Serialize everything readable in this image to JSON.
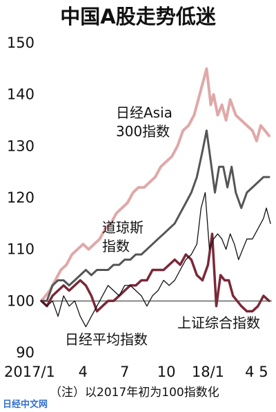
{
  "chart_data": {
    "type": "line",
    "title": "中国A股走势低迷",
    "note": "（注）以2017年初为100指数化",
    "ylim": [
      90,
      150
    ],
    "yticks": [
      90,
      100,
      110,
      120,
      130,
      140,
      150
    ],
    "xlim": [
      0,
      16.6
    ],
    "xticks": [
      {
        "x": 0,
        "label": "2017/1"
      },
      {
        "x": 3,
        "label": "4"
      },
      {
        "x": 6,
        "label": "7"
      },
      {
        "x": 9,
        "label": "10"
      },
      {
        "x": 12,
        "label": "18/1"
      },
      {
        "x": 15,
        "label": "4"
      },
      {
        "x": 16,
        "label": "5"
      }
    ],
    "baseline": 100,
    "series": [
      {
        "name": "日经Asia 300指数",
        "color": "#e0a8a8",
        "width": 4,
        "x": [
          0,
          0.3,
          0.6,
          1.0,
          1.4,
          1.8,
          2.2,
          2.6,
          3.0,
          3.4,
          3.8,
          4.2,
          4.6,
          5.0,
          5.4,
          5.8,
          6.2,
          6.6,
          7.0,
          7.4,
          7.8,
          8.2,
          8.6,
          9.0,
          9.4,
          9.8,
          10.2,
          10.6,
          11.0,
          11.3,
          11.6,
          11.9,
          12.2,
          12.4,
          12.7,
          13.0,
          13.3,
          13.6,
          14.0,
          14.4,
          14.8,
          15.2,
          15.5,
          15.8,
          16.1,
          16.4
        ],
        "values": [
          100,
          101,
          102,
          104,
          106,
          107,
          109,
          110,
          111,
          110,
          111,
          112,
          114,
          115,
          117,
          118,
          119,
          121,
          122,
          122,
          123,
          124,
          126,
          127,
          128,
          130,
          133,
          134,
          136,
          139,
          142,
          145,
          138,
          140,
          136,
          138,
          135,
          139,
          136,
          135,
          134,
          133,
          131,
          134,
          133,
          132
        ]
      },
      {
        "name": "道琼斯指数",
        "color": "#555555",
        "width": 3,
        "x": [
          0,
          0.4,
          0.8,
          1.2,
          1.6,
          2.0,
          2.4,
          2.8,
          3.2,
          3.6,
          4.0,
          4.4,
          4.8,
          5.2,
          5.6,
          6.0,
          6.4,
          6.8,
          7.2,
          7.6,
          8.0,
          8.4,
          8.8,
          9.2,
          9.6,
          10.0,
          10.4,
          10.8,
          11.2,
          11.6,
          11.9,
          12.2,
          12.5,
          12.8,
          13.1,
          13.4,
          13.7,
          14.0,
          14.4,
          14.8,
          15.2,
          15.6,
          16.0,
          16.4
        ],
        "values": [
          100,
          100,
          103,
          104,
          104,
          103,
          104,
          105,
          106,
          105,
          106,
          106,
          106,
          107,
          107,
          108,
          108,
          109,
          109,
          110,
          111,
          112,
          113,
          114,
          115,
          117,
          119,
          121,
          124,
          129,
          133,
          127,
          121,
          126,
          126,
          122,
          126,
          121,
          118,
          121,
          122,
          123,
          124,
          124
        ]
      },
      {
        "name": "上证综合指数",
        "color": "#7a2838",
        "width": 3.5,
        "x": [
          0,
          0.4,
          0.8,
          1.2,
          1.6,
          2.0,
          2.4,
          2.8,
          3.2,
          3.6,
          4.0,
          4.4,
          4.8,
          5.2,
          5.6,
          6.0,
          6.4,
          6.8,
          7.2,
          7.6,
          8.0,
          8.4,
          8.8,
          9.2,
          9.6,
          10.0,
          10.4,
          10.8,
          11.2,
          11.6,
          12.0,
          12.3,
          12.6,
          12.9,
          13.2,
          13.5,
          13.8,
          14.1,
          14.4,
          14.8,
          15.2,
          15.6,
          16.0,
          16.4
        ],
        "values": [
          100,
          99,
          101,
          102,
          103,
          102,
          103,
          104,
          103,
          101,
          98,
          99,
          100,
          100,
          101,
          102,
          103,
          103,
          104,
          104,
          106,
          106,
          106,
          107,
          108,
          107,
          109,
          108,
          105,
          104,
          107,
          113,
          99,
          105,
          104,
          104,
          101,
          100,
          99,
          98,
          98,
          99,
          101,
          100
        ]
      },
      {
        "name": "日经平均指数",
        "color": "#111111",
        "width": 1.3,
        "x": [
          0,
          0.4,
          0.8,
          1.2,
          1.6,
          2.0,
          2.4,
          2.8,
          3.2,
          3.6,
          4.0,
          4.4,
          4.8,
          5.2,
          5.6,
          6.0,
          6.4,
          6.8,
          7.2,
          7.6,
          8.0,
          8.4,
          8.8,
          9.2,
          9.6,
          10.0,
          10.4,
          10.8,
          11.2,
          11.5,
          11.8,
          12.1,
          12.4,
          12.7,
          13.0,
          13.3,
          13.6,
          13.9,
          14.2,
          14.5,
          14.8,
          15.2,
          15.6,
          16.0,
          16.2,
          16.5
        ],
        "values": [
          100,
          99,
          100,
          97,
          101,
          99,
          100,
          97,
          95,
          97,
          99,
          101,
          103,
          102,
          101,
          103,
          103,
          102,
          101,
          99,
          101,
          102,
          104,
          103,
          104,
          106,
          108,
          109,
          111,
          118,
          121,
          110,
          112,
          113,
          112,
          110,
          113,
          111,
          108,
          110,
          112,
          112,
          114,
          116,
          118,
          115
        ]
      }
    ],
    "annotations": [
      {
        "lines": [
          "日经Asia",
          "300指数"
        ]
      },
      {
        "lines": [
          "道琼斯",
          "指数"
        ]
      },
      {
        "lines": [
          "日经平均指数"
        ]
      },
      {
        "lines": [
          "上证综合指数"
        ]
      }
    ]
  },
  "watermark": "日经中文网"
}
